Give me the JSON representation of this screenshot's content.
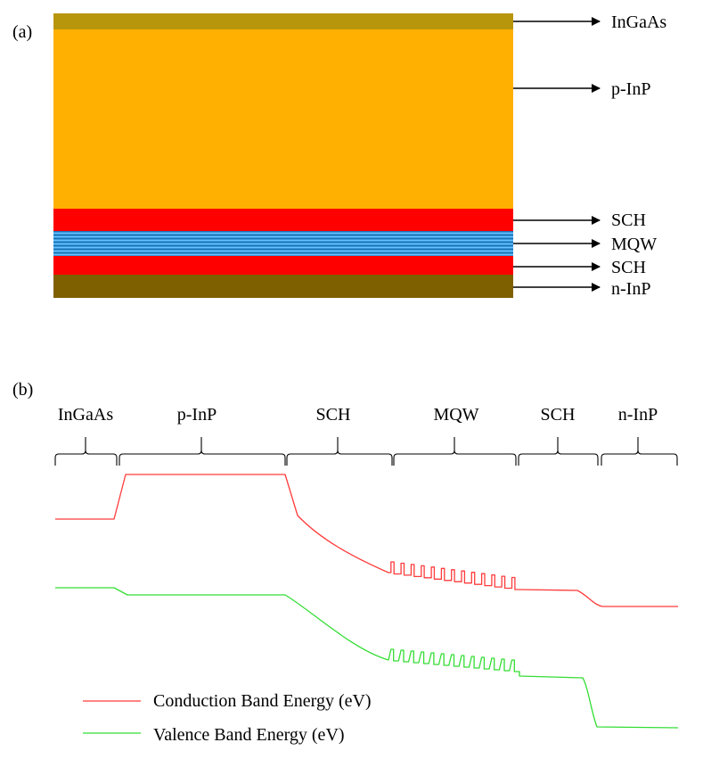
{
  "panel_a": {
    "label": "(a)",
    "layers": [
      {
        "name": "InGaAs",
        "color": "#b8960c"
      },
      {
        "name": "p-InP",
        "color": "#ffb000"
      },
      {
        "name": "SCH",
        "color": "#ff0000"
      },
      {
        "name": "MQW",
        "color": "#3a9ad9"
      },
      {
        "name": "SCH",
        "color": "#ff0000"
      },
      {
        "name": "n-InP",
        "color": "#7f6000"
      }
    ]
  },
  "panel_b": {
    "label": "(b)",
    "regions": [
      "InGaAs",
      "p-InP",
      "SCH",
      "MQW",
      "SCH",
      "n-InP"
    ],
    "legend": [
      {
        "label": "Conduction Band Energy (eV)",
        "color": "#ff3b3b"
      },
      {
        "label": "Valence Band Energy (eV)",
        "color": "#33dd33"
      }
    ]
  }
}
